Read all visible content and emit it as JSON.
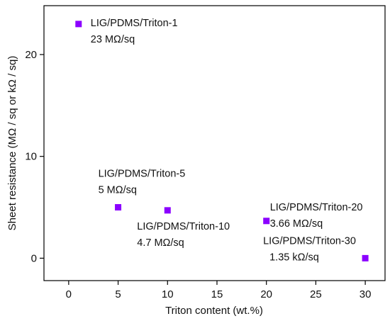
{
  "chart_data": {
    "type": "scatter",
    "xlabel": "Triton content (wt.%)",
    "ylabel": "Sheet resistance (MΩ / sq or kΩ / sq)",
    "xlim": [
      -2.5,
      32
    ],
    "ylim": [
      -2.2,
      24.8
    ],
    "xticks": [
      0,
      5,
      10,
      15,
      20,
      25,
      30
    ],
    "yticks": [
      0,
      10,
      20
    ],
    "grid": false,
    "marker_color": "#8B00FF",
    "points": [
      {
        "x": 1,
        "y": 23,
        "label": "LIG/PDMS/Triton-1",
        "value_label": "23 MΩ/sq"
      },
      {
        "x": 5,
        "y": 5,
        "label": "LIG/PDMS/Triton-5",
        "value_label": "5 MΩ/sq"
      },
      {
        "x": 10,
        "y": 4.7,
        "label": "LIG/PDMS/Triton-10",
        "value_label": "4.7 MΩ/sq"
      },
      {
        "x": 20,
        "y": 3.66,
        "label": "LIG/PDMS/Triton-20",
        "value_label": "3.66 MΩ/sq"
      },
      {
        "x": 30,
        "y": 0.00135,
        "label": "LIG/PDMS/Triton-30",
        "value_label": "1.35 kΩ/sq"
      }
    ]
  }
}
